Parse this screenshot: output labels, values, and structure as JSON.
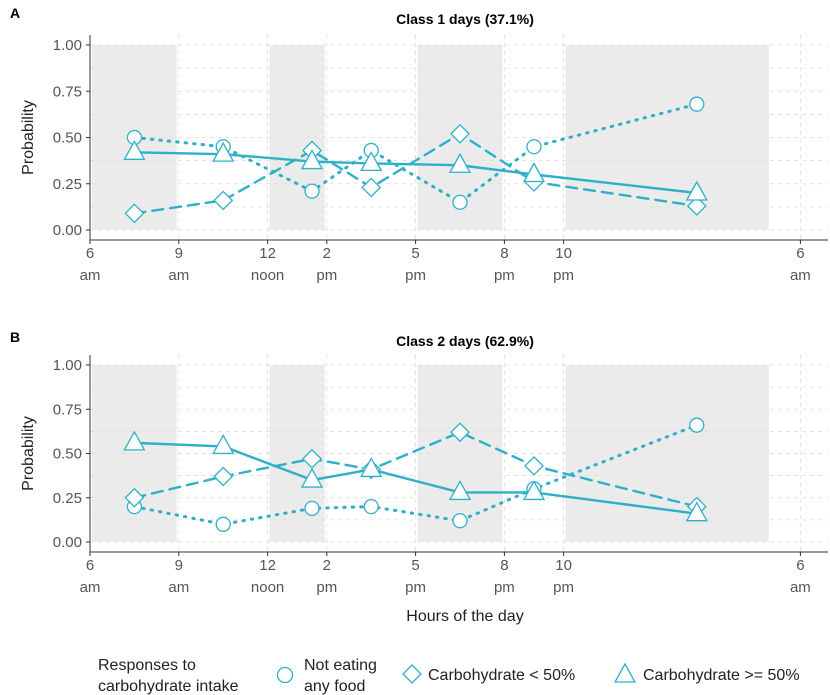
{
  "colors": {
    "series": "#2eb0c8",
    "shade": "#ebebeb",
    "grid": "#dcdcdc"
  },
  "chart_data": [
    {
      "type": "line",
      "panel_label": "A",
      "title": "Class 1 days  (37.1%)",
      "ylabel": "Probability",
      "xlabel": "",
      "ylim": [
        0,
        1
      ],
      "yticks": [
        "0.00",
        "0.25",
        "0.50",
        "0.75",
        "1.00"
      ],
      "xlim": [
        6,
        30
      ],
      "xticks": [
        {
          "hour": 6,
          "line1": "6",
          "line2": "am"
        },
        {
          "hour": 9,
          "line1": "9",
          "line2": "am"
        },
        {
          "hour": 12,
          "line1": "12",
          "line2": "noon"
        },
        {
          "hour": 14,
          "line1": "2",
          "line2": "pm"
        },
        {
          "hour": 17,
          "line1": "5",
          "line2": "pm"
        },
        {
          "hour": 20,
          "line1": "8",
          "line2": "pm"
        },
        {
          "hour": 22,
          "line1": "10",
          "line2": "pm"
        },
        {
          "hour": 30,
          "line1": "6",
          "line2": "am"
        }
      ],
      "shaded_periods": [
        [
          6,
          9
        ],
        [
          12,
          14
        ],
        [
          17,
          20
        ],
        [
          22,
          29
        ]
      ],
      "x": [
        7.5,
        10.5,
        13.5,
        15.5,
        18.5,
        21,
        26.5
      ],
      "series": [
        {
          "name": "Not eating any food",
          "marker": "circle",
          "line": "dotted",
          "values": [
            0.5,
            0.45,
            0.21,
            0.43,
            0.15,
            0.45,
            0.68
          ]
        },
        {
          "name": "Carbohydrate < 50%",
          "marker": "diamond",
          "line": "dashed",
          "values": [
            0.09,
            0.16,
            0.43,
            0.23,
            0.52,
            0.26,
            0.13
          ]
        },
        {
          "name": "Carbohydrate >= 50%",
          "marker": "triangle",
          "line": "solid",
          "values": [
            0.42,
            0.41,
            0.37,
            0.36,
            0.35,
            0.3,
            0.2
          ]
        }
      ]
    },
    {
      "type": "line",
      "panel_label": "B",
      "title": "Class 2 days (62.9%)",
      "ylabel": "Probability",
      "xlabel": "Hours of the day",
      "ylim": [
        0,
        1
      ],
      "yticks": [
        "0.00",
        "0.25",
        "0.50",
        "0.75",
        "1.00"
      ],
      "xlim": [
        6,
        30
      ],
      "xticks": [
        {
          "hour": 6,
          "line1": "6",
          "line2": "am"
        },
        {
          "hour": 9,
          "line1": "9",
          "line2": "am"
        },
        {
          "hour": 12,
          "line1": "12",
          "line2": "noon"
        },
        {
          "hour": 14,
          "line1": "2",
          "line2": "pm"
        },
        {
          "hour": 17,
          "line1": "5",
          "line2": "pm"
        },
        {
          "hour": 20,
          "line1": "8",
          "line2": "pm"
        },
        {
          "hour": 22,
          "line1": "10",
          "line2": "pm"
        },
        {
          "hour": 30,
          "line1": "6",
          "line2": "am"
        }
      ],
      "shaded_periods": [
        [
          6,
          9
        ],
        [
          12,
          14
        ],
        [
          17,
          20
        ],
        [
          22,
          29
        ]
      ],
      "x": [
        7.5,
        10.5,
        13.5,
        15.5,
        18.5,
        21,
        26.5
      ],
      "series": [
        {
          "name": "Not eating any food",
          "marker": "circle",
          "line": "dotted",
          "values": [
            0.2,
            0.1,
            0.19,
            0.2,
            0.12,
            0.3,
            0.66
          ]
        },
        {
          "name": "Carbohydrate < 50%",
          "marker": "diamond",
          "line": "dashed",
          "values": [
            0.25,
            0.37,
            0.47,
            0.41,
            0.62,
            0.43,
            0.2
          ]
        },
        {
          "name": "Carbohydrate >= 50%",
          "marker": "triangle",
          "line": "solid",
          "values": [
            0.56,
            0.54,
            0.35,
            0.41,
            0.28,
            0.28,
            0.16
          ]
        }
      ]
    }
  ],
  "legend": {
    "title_line1": "Responses to",
    "title_line2": "carbohydrate intake",
    "items": [
      {
        "marker": "circle",
        "line1": "Not eating",
        "line2": "any food"
      },
      {
        "marker": "diamond",
        "line1": "Carbohydrate < 50%"
      },
      {
        "marker": "triangle",
        "line1": "Carbohydrate >= 50%"
      }
    ]
  }
}
